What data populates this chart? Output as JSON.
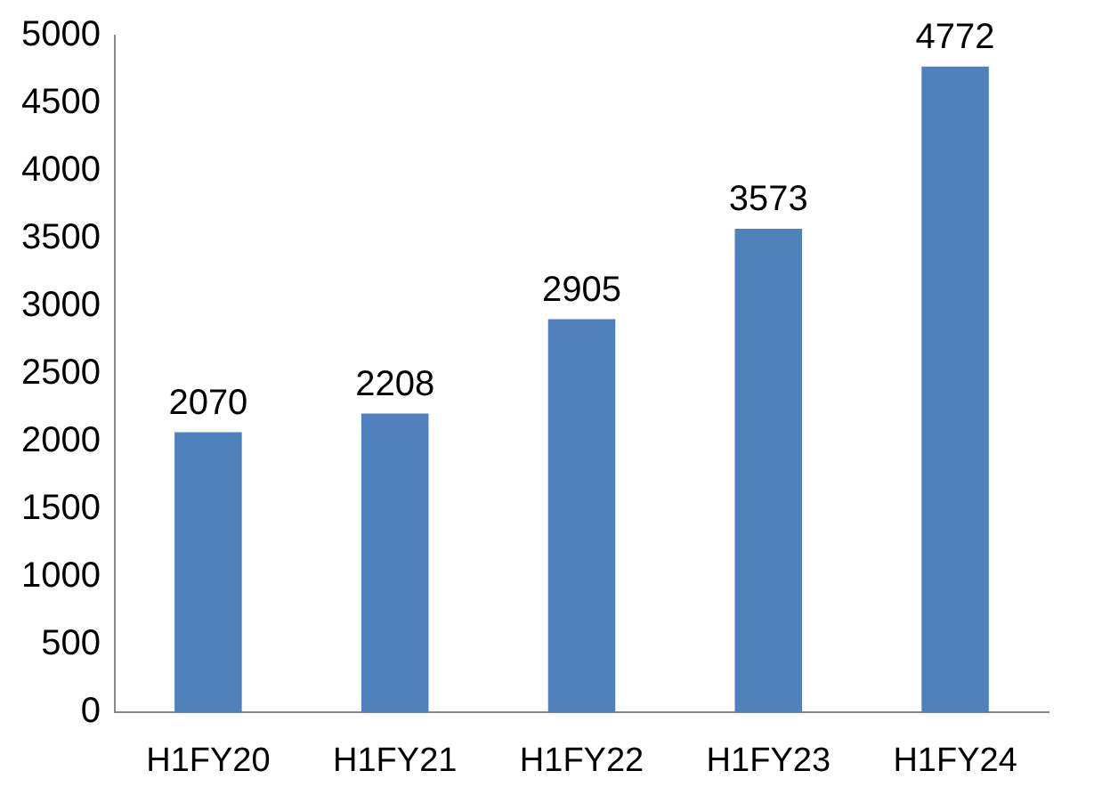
{
  "chart_data": {
    "type": "bar",
    "categories": [
      "H1FY20",
      "H1FY21",
      "H1FY22",
      "H1FY23",
      "H1FY24"
    ],
    "values": [
      2070,
      2208,
      2905,
      3573,
      4772
    ],
    "color": "#4f81bd",
    "ylim": [
      0,
      5000
    ],
    "yticks": [
      0,
      500,
      1000,
      1500,
      2000,
      2500,
      3000,
      3500,
      4000,
      4500,
      5000
    ],
    "grid": false,
    "legend": false,
    "data_labels": true
  }
}
